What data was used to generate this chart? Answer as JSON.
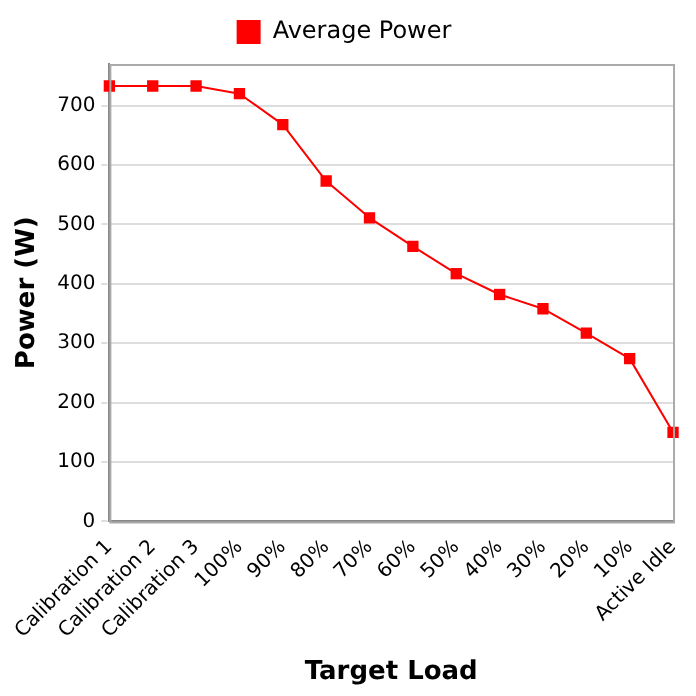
{
  "chart_data": {
    "type": "line",
    "xlabel": "Target Load",
    "ylabel": "Power (W)",
    "categories": [
      "Calibration 1",
      "Calibration 2",
      "Calibration 3",
      "100%",
      "90%",
      "80%",
      "70%",
      "60%",
      "50%",
      "40%",
      "30%",
      "20%",
      "10%",
      "Active Idle"
    ],
    "series": [
      {
        "name": "Average Power",
        "color": "#ff0000",
        "values": [
          733,
          733,
          733,
          720,
          668,
          573,
          511,
          463,
          417,
          382,
          358,
          317,
          274,
          150
        ]
      }
    ],
    "ylim": [
      0,
      770
    ],
    "yticks": [
      0,
      100,
      200,
      300,
      400,
      500,
      600,
      700
    ],
    "grid": "y",
    "legend": "top",
    "marker": "square",
    "line_style": "solid"
  }
}
